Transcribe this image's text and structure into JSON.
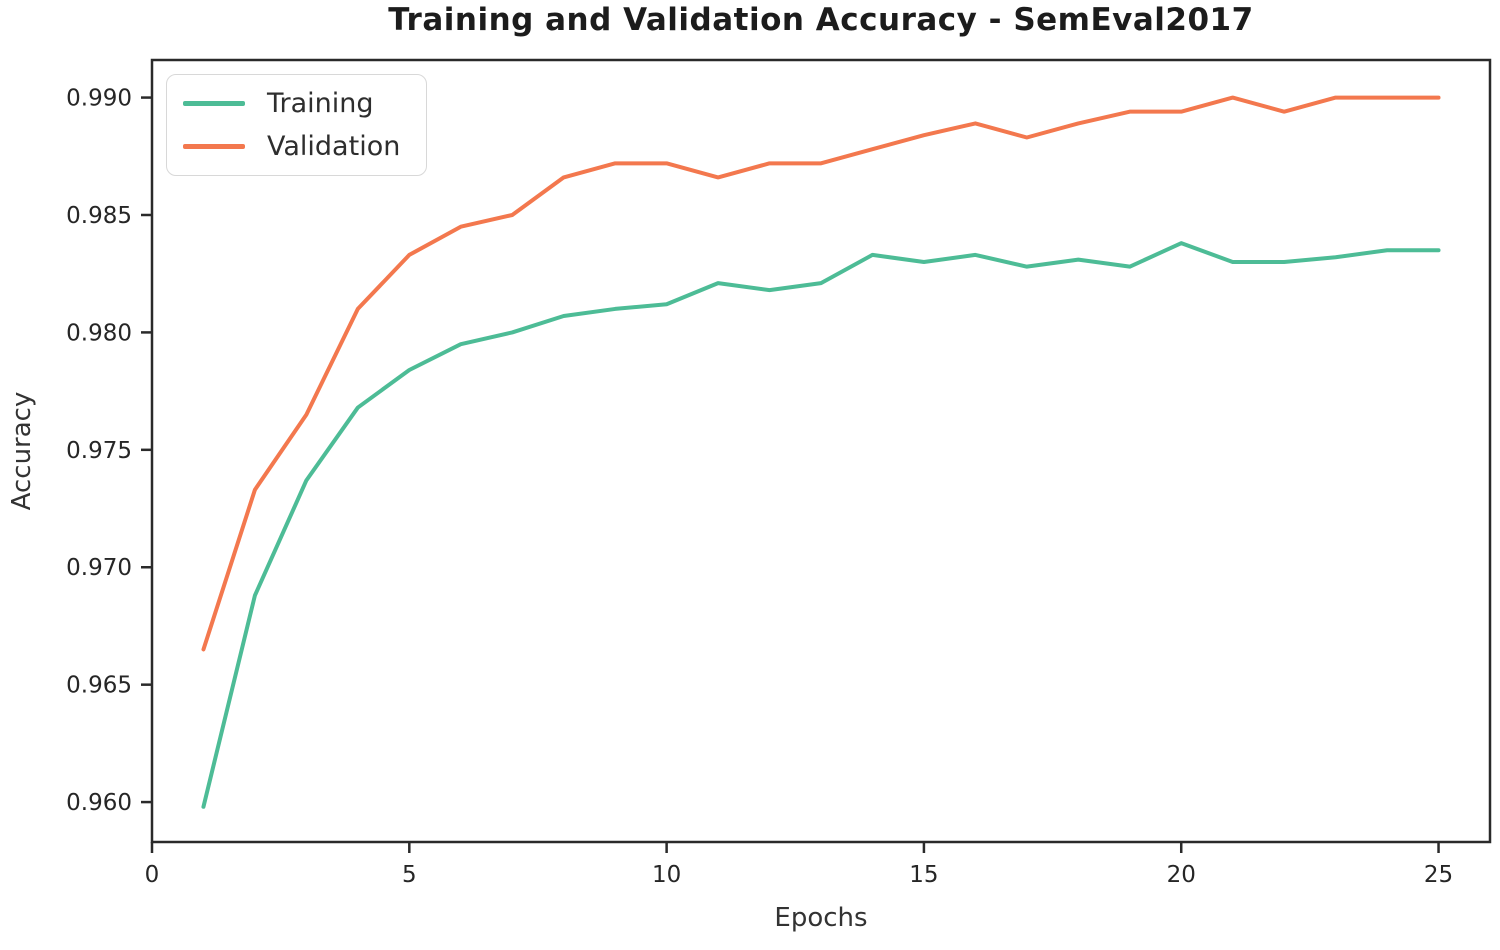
{
  "title": "Training and Validation Accuracy - SemEval2017",
  "chart_data": {
    "type": "line",
    "title": "Training and Validation Accuracy - SemEval2017",
    "xlabel": "Epochs",
    "ylabel": "Accuracy",
    "x": [
      1,
      2,
      3,
      4,
      5,
      6,
      7,
      8,
      9,
      10,
      11,
      12,
      13,
      14,
      15,
      16,
      17,
      18,
      19,
      20,
      21,
      22,
      23,
      24,
      25
    ],
    "series": [
      {
        "name": "Training",
        "color": "#4dbc96",
        "values": [
          0.9598,
          0.9688,
          0.9737,
          0.9768,
          0.9784,
          0.9795,
          0.98,
          0.9807,
          0.981,
          0.9812,
          0.9821,
          0.9818,
          0.9821,
          0.9833,
          0.983,
          0.9833,
          0.9828,
          0.9831,
          0.9828,
          0.9838,
          0.983,
          0.983,
          0.9832,
          0.9835,
          0.9835
        ]
      },
      {
        "name": "Validation",
        "color": "#f3784e",
        "values": [
          0.9665,
          0.9733,
          0.9765,
          0.981,
          0.9833,
          0.9845,
          0.985,
          0.9866,
          0.9872,
          0.9872,
          0.9866,
          0.9872,
          0.9872,
          0.9878,
          0.9884,
          0.9889,
          0.9883,
          0.9889,
          0.9894,
          0.9894,
          0.99,
          0.9894,
          0.99,
          0.99,
          0.99
        ]
      }
    ],
    "xlim": [
      0,
      26
    ],
    "ylim": [
      0.9583,
      0.9916
    ],
    "xticks": [
      0,
      5,
      10,
      15,
      20,
      25
    ],
    "yticks": [
      0.96,
      0.965,
      0.97,
      0.975,
      0.98,
      0.985,
      0.99
    ],
    "grid": false,
    "legend_position": "upper left",
    "axis_color": "#2a2a2a",
    "tick_label_color": "#262626",
    "line_width": 4
  }
}
